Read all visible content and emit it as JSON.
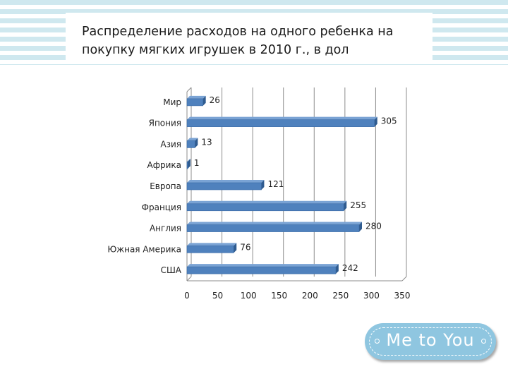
{
  "title": "Распределение расходов на одного ребенка на покупку мягких игрушек в 2010 г., в дол",
  "logo": {
    "text": "Me to You"
  },
  "chart_data": {
    "type": "bar",
    "orientation": "horizontal",
    "categories": [
      "Мир",
      "Япония",
      "Азия",
      "Африка",
      "Европа",
      "Франция",
      "Англия",
      "Южная Америка",
      "США"
    ],
    "values": [
      26,
      305,
      13,
      1,
      121,
      255,
      280,
      76,
      242
    ],
    "xlim": [
      0,
      350
    ],
    "xticks": [
      0,
      50,
      100,
      150,
      200,
      250,
      300,
      350
    ],
    "grid": true,
    "bar_color": "#4f81bd"
  }
}
